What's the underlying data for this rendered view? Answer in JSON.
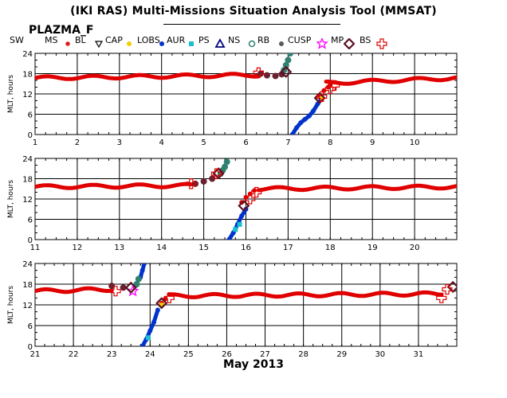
{
  "header": {
    "title": "(IKI RAS) Multi-Missions Situation Analysis Tool (MMSAT)",
    "mission": "PLAZMA_F"
  },
  "legend": [
    {
      "label": "SW",
      "marker": "none",
      "color": "#e00000"
    },
    {
      "label": "MS",
      "marker": "asterisk",
      "color": "#e00000"
    },
    {
      "label": "BL",
      "marker": "triangle-down-open",
      "color": "#000000"
    },
    {
      "label": "CAP",
      "marker": "dot",
      "color": "#f0d000"
    },
    {
      "label": "LOBS",
      "marker": "dot",
      "color": "#0033cc"
    },
    {
      "label": "AUR",
      "marker": "square",
      "color": "#18c0d0"
    },
    {
      "label": "PS",
      "marker": "triangle-up-open",
      "color": "#000080"
    },
    {
      "label": "NS",
      "marker": "circle-open",
      "color": "#2f8070"
    },
    {
      "label": "RB",
      "marker": "dot",
      "color": "#5a5a5a"
    },
    {
      "label": "CUSP",
      "marker": "star-open",
      "color": "#ff00ff"
    },
    {
      "label": "MP",
      "marker": "diamond-open",
      "color": "#5a1020"
    },
    {
      "label": "BS",
      "marker": "plus-open",
      "color": "#e00000"
    }
  ],
  "chart_data": [
    {
      "type": "scatter",
      "ylabel": "MLT, hours",
      "xlim": [
        1,
        11
      ],
      "ylim": [
        0,
        24
      ],
      "xticks": [
        "1",
        "2",
        "3",
        "4",
        "5",
        "6",
        "7",
        "8",
        "9",
        "10"
      ],
      "yticks": [
        "0",
        "6",
        "12",
        "18",
        "24"
      ],
      "grid": true,
      "series": [
        {
          "name": "SW",
          "color": "#e00000",
          "x": [
            1.0,
            6.3
          ],
          "y": [
            16.7,
            17.6
          ],
          "style": "wave"
        },
        {
          "name": "SW",
          "color": "#e00000",
          "x": [
            7.9,
            11.0
          ],
          "y": [
            15.2,
            16.7
          ],
          "style": "wave"
        },
        {
          "name": "MS",
          "color": "#e00000",
          "x": [
            7.75,
            7.85,
            7.95,
            8.0
          ],
          "y": [
            11.5,
            13.0,
            14.0,
            14.8
          ]
        },
        {
          "name": "LOBS",
          "color": "#0033cc",
          "x": [
            7.1,
            7.2,
            7.3,
            7.4,
            7.5,
            7.6,
            7.7,
            7.8
          ],
          "y": [
            0.0,
            2.0,
            3.5,
            4.5,
            5.5,
            7.0,
            9.0,
            10.8
          ]
        },
        {
          "name": "NS",
          "color": "#2f8070",
          "x": [
            6.9,
            6.95,
            7.0,
            7.05
          ],
          "y": [
            19.0,
            20.5,
            22.0,
            24.0
          ]
        },
        {
          "name": "RB",
          "color": "#5a5a5a",
          "x": [
            6.35,
            6.5,
            6.7,
            6.85
          ],
          "y": [
            18.0,
            17.5,
            17.3,
            17.8
          ]
        },
        {
          "name": "CAP",
          "color": "#f0d000",
          "x": [
            7.8
          ],
          "y": [
            10.8
          ]
        },
        {
          "name": "MP",
          "color": "#5a1020",
          "x": [
            6.95,
            7.75
          ],
          "y": [
            18.5,
            10.8
          ]
        },
        {
          "name": "BS",
          "color": "#e00000",
          "x": [
            6.3,
            7.8,
            8.0,
            8.1
          ],
          "y": [
            18.3,
            11.2,
            13.5,
            14.5
          ]
        }
      ]
    },
    {
      "type": "scatter",
      "ylabel": "MLT, hours",
      "xlim": [
        11,
        21
      ],
      "ylim": [
        0,
        24
      ],
      "xticks": [
        "11",
        "12",
        "13",
        "14",
        "15",
        "16",
        "17",
        "18",
        "19",
        "20"
      ],
      "yticks": [
        "0",
        "6",
        "12",
        "18",
        "24"
      ],
      "grid": true,
      "series": [
        {
          "name": "SW",
          "color": "#e00000",
          "x": [
            11.0,
            14.7
          ],
          "y": [
            15.6,
            16.0
          ],
          "style": "wave"
        },
        {
          "name": "SW",
          "color": "#e00000",
          "x": [
            16.3,
            21.0
          ],
          "y": [
            15.0,
            15.6
          ],
          "style": "wave"
        },
        {
          "name": "MS",
          "color": "#e00000",
          "x": [
            15.9,
            16.0,
            16.1,
            16.2
          ],
          "y": [
            11.0,
            12.5,
            13.5,
            14.5
          ]
        },
        {
          "name": "LOBS",
          "color": "#0033cc",
          "x": [
            15.6,
            15.7,
            15.75,
            15.8,
            15.9,
            16.0
          ],
          "y": [
            0.0,
            2.0,
            3.0,
            4.5,
            7.0,
            9.0
          ]
        },
        {
          "name": "NS",
          "color": "#2f8070",
          "x": [
            15.4,
            15.45,
            15.5,
            15.55
          ],
          "y": [
            19.5,
            20.5,
            21.5,
            23.0
          ]
        },
        {
          "name": "RB",
          "color": "#5a5a5a",
          "x": [
            14.8,
            15.0,
            15.2
          ],
          "y": [
            16.5,
            17.2,
            18.0
          ]
        },
        {
          "name": "AUR",
          "color": "#18c0d0",
          "x": [
            15.75,
            15.85
          ],
          "y": [
            3.0,
            4.5
          ]
        },
        {
          "name": "MP",
          "color": "#5a1020",
          "x": [
            15.35,
            15.95
          ],
          "y": [
            19.6,
            10.0
          ]
        },
        {
          "name": "BS",
          "color": "#e00000",
          "x": [
            14.7,
            15.3,
            16.1,
            16.25
          ],
          "y": [
            16.5,
            19.5,
            12.0,
            14.0
          ]
        }
      ]
    },
    {
      "type": "scatter",
      "ylabel": "MLT, hours",
      "xlim": [
        21,
        32
      ],
      "ylim": [
        0,
        24
      ],
      "xticks": [
        "21",
        "22",
        "23",
        "24",
        "25",
        "26",
        "27",
        "28",
        "29",
        "30",
        "31"
      ],
      "yticks": [
        "0",
        "6",
        "12",
        "18",
        "24"
      ],
      "grid": true,
      "series": [
        {
          "name": "SW",
          "color": "#e00000",
          "x": [
            21.0,
            23.0
          ],
          "y": [
            16.0,
            16.5
          ],
          "style": "wave"
        },
        {
          "name": "SW",
          "color": "#e00000",
          "x": [
            24.5,
            31.6
          ],
          "y": [
            14.6,
            15.2
          ],
          "style": "wave"
        },
        {
          "name": "MS",
          "color": "#e00000",
          "x": [
            24.3,
            24.4,
            24.5
          ],
          "y": [
            12.5,
            13.8,
            15.0
          ]
        },
        {
          "name": "LOBS",
          "color": "#0033cc",
          "x": [
            23.8,
            23.9,
            24.0,
            24.1,
            24.2,
            23.75,
            23.8,
            23.85
          ],
          "y": [
            0.0,
            2.0,
            4.5,
            7.0,
            10.5,
            20.0,
            22.0,
            24.0
          ]
        },
        {
          "name": "NS",
          "color": "#2f8070",
          "x": [
            23.65,
            23.7
          ],
          "y": [
            18.0,
            19.5
          ]
        },
        {
          "name": "RB",
          "color": "#5a5a5a",
          "x": [
            23.0,
            23.3
          ],
          "y": [
            17.5,
            17.0
          ]
        },
        {
          "name": "AUR",
          "color": "#18c0d0",
          "x": [
            23.95
          ],
          "y": [
            2.5
          ]
        },
        {
          "name": "CUSP",
          "color": "#ff00ff",
          "x": [
            23.55
          ],
          "y": [
            16.0
          ]
        },
        {
          "name": "CAP",
          "color": "#f0d000",
          "x": [
            24.3
          ],
          "y": [
            12.0
          ]
        },
        {
          "name": "MP",
          "color": "#5a1020",
          "x": [
            23.5,
            24.3,
            31.9
          ],
          "y": [
            17.0,
            12.5,
            17.2
          ]
        },
        {
          "name": "BS",
          "color": "#e00000",
          "x": [
            23.1,
            24.5,
            31.6,
            31.75
          ],
          "y": [
            16.0,
            14.0,
            14.0,
            16.5
          ]
        }
      ]
    }
  ],
  "footer": {
    "xlabel": "May 2013"
  }
}
